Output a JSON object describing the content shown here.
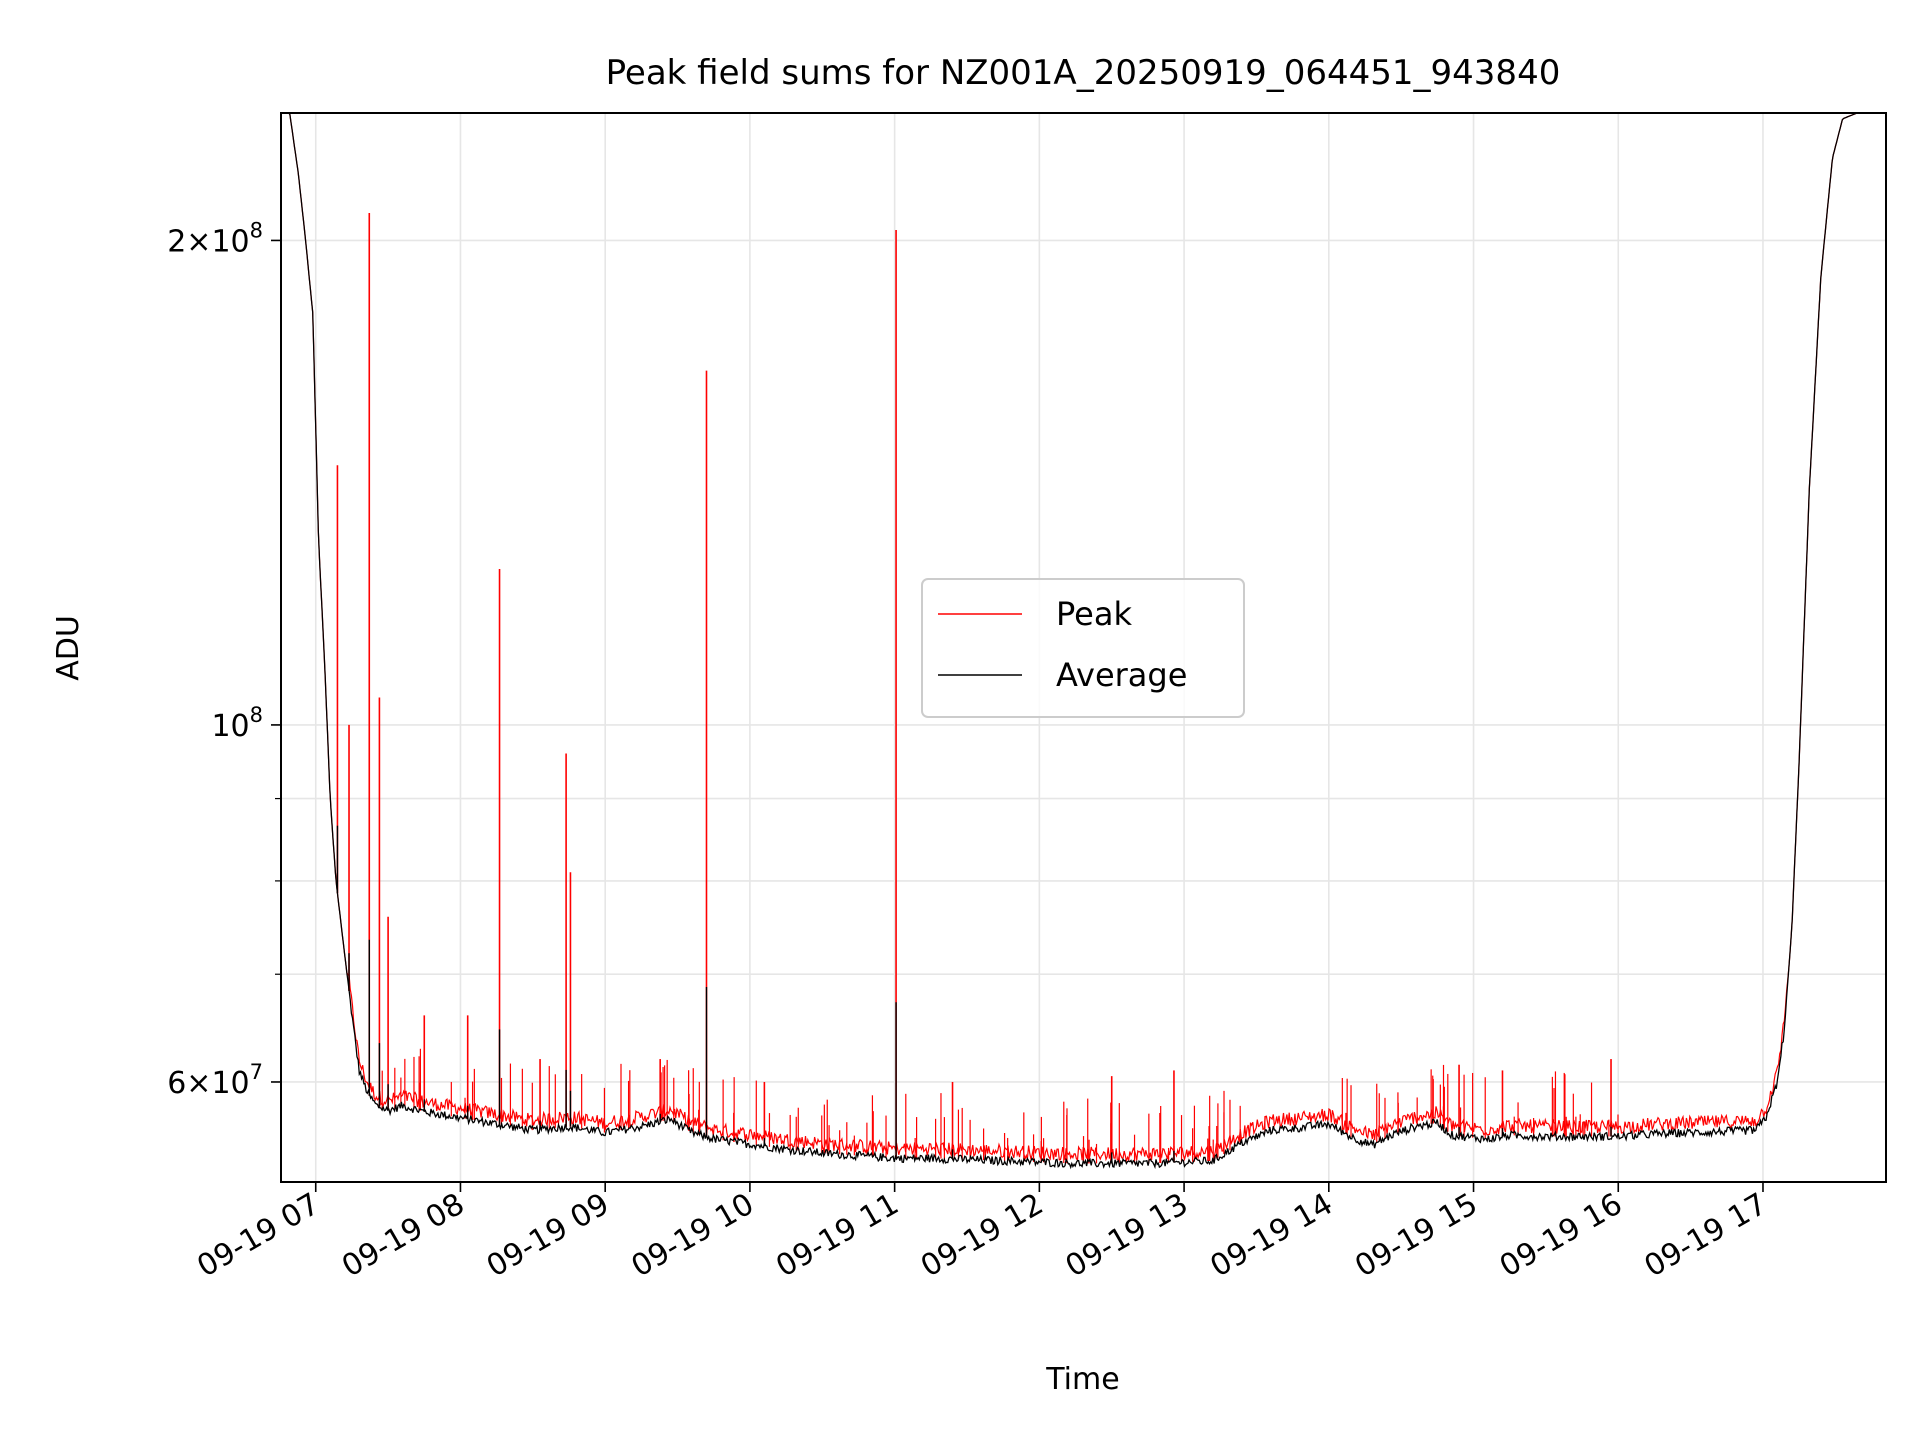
{
  "chart_data": {
    "type": "line",
    "title": "Peak field sums for NZ001A_20250919_064451_943840",
    "xlabel": "Time",
    "ylabel": "ADU",
    "yscale": "log",
    "ylim": [
      52000000,
      240000000
    ],
    "xlim": [
      6.76,
      17.85
    ],
    "x_unit": "hour of day 2025-09-19",
    "grid": true,
    "x_ticks": [
      {
        "value": 7,
        "label": "09-19 07"
      },
      {
        "value": 8,
        "label": "09-19 08"
      },
      {
        "value": 9,
        "label": "09-19 09"
      },
      {
        "value": 10,
        "label": "09-19 10"
      },
      {
        "value": 11,
        "label": "09-19 11"
      },
      {
        "value": 12,
        "label": "09-19 12"
      },
      {
        "value": 13,
        "label": "09-19 13"
      },
      {
        "value": 14,
        "label": "09-19 14"
      },
      {
        "value": 15,
        "label": "09-19 15"
      },
      {
        "value": 16,
        "label": "09-19 16"
      },
      {
        "value": 17,
        "label": "09-19 17"
      }
    ],
    "y_major_ticks": [
      {
        "value": 60000000,
        "mantissa": "6",
        "exponent": "7"
      },
      {
        "value": 100000000,
        "mantissa": "",
        "exponent": "8"
      },
      {
        "value": 200000000,
        "mantissa": "2",
        "exponent": "8"
      }
    ],
    "y_minor_ticks": [
      70000000,
      80000000,
      90000000
    ],
    "legend": {
      "position": "center",
      "entries": [
        "Peak",
        "Average"
      ]
    },
    "series": [
      {
        "name": "Average",
        "color": "#000000",
        "x": [
          6.79,
          6.82,
          6.88,
          6.93,
          6.98,
          7.02,
          7.06,
          7.1,
          7.14,
          7.2,
          7.25,
          7.3,
          7.36,
          7.42,
          7.5,
          7.6,
          7.75,
          8.0,
          8.25,
          8.5,
          8.75,
          9.0,
          9.25,
          9.45,
          9.6,
          9.75,
          10.0,
          10.25,
          10.5,
          10.75,
          11.0,
          11.25,
          11.5,
          11.75,
          12.0,
          12.25,
          12.5,
          12.75,
          13.0,
          13.2,
          13.4,
          13.6,
          13.8,
          14.0,
          14.15,
          14.3,
          14.45,
          14.6,
          14.75,
          14.85,
          15.0,
          15.1,
          15.25,
          15.5,
          15.75,
          16.0,
          16.25,
          16.5,
          16.75,
          16.95,
          17.02,
          17.1,
          17.15,
          17.2,
          17.25,
          17.32,
          17.4,
          17.48,
          17.55,
          17.65,
          17.8
        ],
        "y": [
          240000000,
          240000000,
          220000000,
          200000000,
          180000000,
          130000000,
          110000000,
          90000000,
          80000000,
          72000000,
          66000000,
          61000000,
          59000000,
          58000000,
          57600000,
          58000000,
          57500000,
          57000000,
          56500000,
          56000000,
          56300000,
          55800000,
          56300000,
          56900000,
          55800000,
          55300000,
          54900000,
          54500000,
          54200000,
          54000000,
          53800000,
          53800000,
          53700000,
          53600000,
          53500000,
          53400000,
          53400000,
          53400000,
          53500000,
          53600000,
          55000000,
          56000000,
          56200000,
          56500000,
          55500000,
          54800000,
          55700000,
          56300000,
          56600000,
          55600000,
          55400000,
          55300000,
          55600000,
          55500000,
          55500000,
          55500000,
          55700000,
          55800000,
          55900000,
          56000000,
          57000000,
          60000000,
          65000000,
          75000000,
          95000000,
          140000000,
          190000000,
          225000000,
          238000000,
          240000000,
          240000000
        ]
      },
      {
        "name": "Peak",
        "color": "#ff0000",
        "spikes": [
          {
            "x": 7.15,
            "y": 145000000
          },
          {
            "x": 7.23,
            "y": 100000000
          },
          {
            "x": 7.37,
            "y": 208000000
          },
          {
            "x": 7.44,
            "y": 104000000
          },
          {
            "x": 7.5,
            "y": 76000000
          },
          {
            "x": 7.75,
            "y": 66000000
          },
          {
            "x": 8.05,
            "y": 66000000
          },
          {
            "x": 8.27,
            "y": 125000000
          },
          {
            "x": 8.55,
            "y": 62000000
          },
          {
            "x": 8.73,
            "y": 96000000
          },
          {
            "x": 8.76,
            "y": 81000000
          },
          {
            "x": 9.38,
            "y": 62000000
          },
          {
            "x": 9.7,
            "y": 166000000
          },
          {
            "x": 10.1,
            "y": 60000000
          },
          {
            "x": 11.01,
            "y": 203000000
          },
          {
            "x": 11.4,
            "y": 60000000
          },
          {
            "x": 12.5,
            "y": 60500000
          },
          {
            "x": 12.93,
            "y": 61000000
          },
          {
            "x": 14.9,
            "y": 61500000
          },
          {
            "x": 15.2,
            "y": 61000000
          },
          {
            "x": 15.95,
            "y": 62000000
          }
        ]
      }
    ]
  }
}
